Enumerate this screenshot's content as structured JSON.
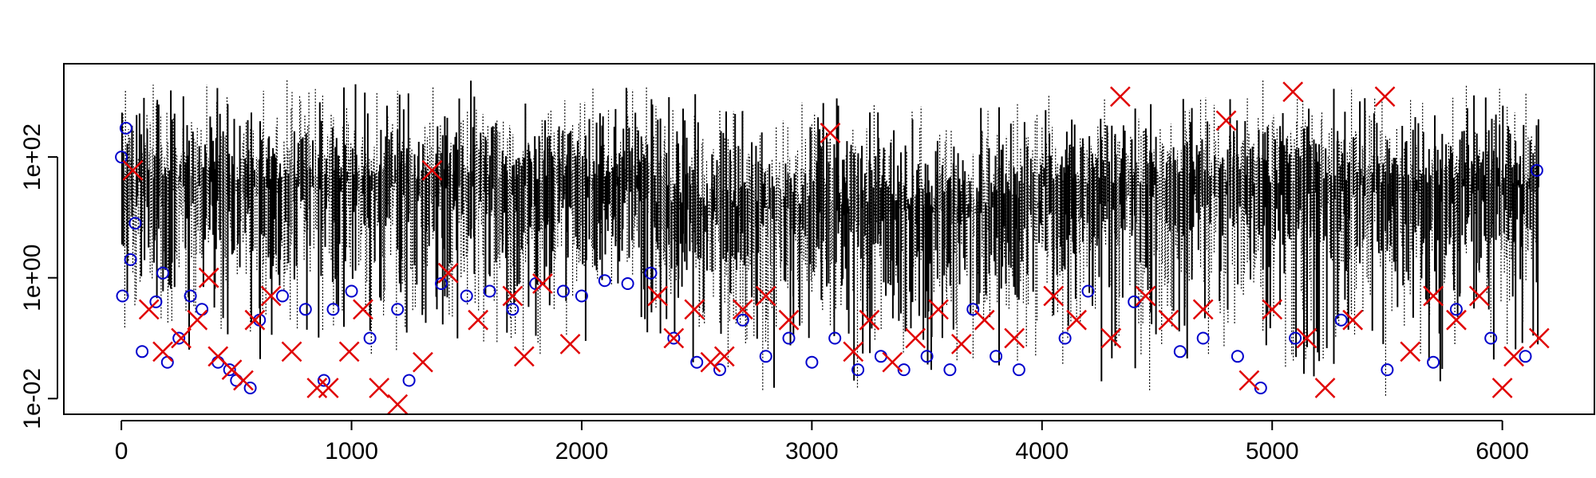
{
  "chart_data": {
    "type": "scatter",
    "title": "",
    "xlabel": "",
    "ylabel": "",
    "x_ticks": [
      "0",
      "1000",
      "2000",
      "3000",
      "4000",
      "5000",
      "6000"
    ],
    "x_tick_values": [
      0,
      1000,
      2000,
      3000,
      4000,
      5000,
      6000
    ],
    "y_ticks": [
      "1e-02",
      "1e+00",
      "1e+02"
    ],
    "y_tick_values": [
      0.01,
      1,
      100
    ],
    "xlim": [
      -250,
      6400
    ],
    "ylim": [
      0.0055,
      3500
    ],
    "y_scale": "log",
    "grid": false,
    "legend": "none",
    "colors": {
      "interval_lines": "#000000",
      "circles": "#0000cc",
      "crosses": "#e00000"
    },
    "series": [
      {
        "kind": "vertical segments",
        "color": "#000000",
        "x_range": [
          0,
          6160
        ],
        "segments": [
          {
            "x_range": [
              0,
              2320
            ],
            "center_y": 40,
            "low_y": 0.03,
            "high_y": 2500
          },
          {
            "x_range": [
              2320,
              4000
            ],
            "center_y": 15,
            "low_y": 0.01,
            "high_y": 1500
          },
          {
            "x_range": [
              4000,
              6160
            ],
            "center_y": 35,
            "low_y": 0.008,
            "high_y": 2000
          }
        ]
      },
      {
        "kind": "points",
        "marker": "circle",
        "color": "#0000cc",
        "points": [
          [
            0,
            100
          ],
          [
            5,
            0.5
          ],
          [
            20,
            300
          ],
          [
            40,
            2
          ],
          [
            60,
            8
          ],
          [
            90,
            0.06
          ],
          [
            150,
            0.4
          ],
          [
            180,
            1.2
          ],
          [
            200,
            0.04
          ],
          [
            250,
            0.1
          ],
          [
            300,
            0.5
          ],
          [
            350,
            0.3
          ],
          [
            420,
            0.04
          ],
          [
            470,
            0.03
          ],
          [
            500,
            0.02
          ],
          [
            560,
            0.015
          ],
          [
            600,
            0.2
          ],
          [
            700,
            0.5
          ],
          [
            800,
            0.3
          ],
          [
            880,
            0.02
          ],
          [
            920,
            0.3
          ],
          [
            1000,
            0.6
          ],
          [
            1080,
            0.1
          ],
          [
            1200,
            0.3
          ],
          [
            1250,
            0.02
          ],
          [
            1390,
            0.8
          ],
          [
            1500,
            0.5
          ],
          [
            1600,
            0.6
          ],
          [
            1700,
            0.3
          ],
          [
            1800,
            0.8
          ],
          [
            1920,
            0.6
          ],
          [
            2000,
            0.5
          ],
          [
            2100,
            0.9
          ],
          [
            2200,
            0.8
          ],
          [
            2300,
            1.2
          ],
          [
            2400,
            0.1
          ],
          [
            2500,
            0.04
          ],
          [
            2600,
            0.03
          ],
          [
            2700,
            0.2
          ],
          [
            2800,
            0.05
          ],
          [
            2900,
            0.1
          ],
          [
            3000,
            0.04
          ],
          [
            3100,
            0.1
          ],
          [
            3200,
            0.03
          ],
          [
            3300,
            0.05
          ],
          [
            3400,
            0.03
          ],
          [
            3500,
            0.05
          ],
          [
            3600,
            0.03
          ],
          [
            3700,
            0.3
          ],
          [
            3800,
            0.05
          ],
          [
            3900,
            0.03
          ],
          [
            4100,
            0.1
          ],
          [
            4200,
            0.6
          ],
          [
            4400,
            0.4
          ],
          [
            4600,
            0.06
          ],
          [
            4700,
            0.1
          ],
          [
            4850,
            0.05
          ],
          [
            4950,
            0.015
          ],
          [
            5100,
            0.1
          ],
          [
            5300,
            0.2
          ],
          [
            5500,
            0.03
          ],
          [
            5700,
            0.04
          ],
          [
            5800,
            0.3
          ],
          [
            5950,
            0.1
          ],
          [
            6100,
            0.05
          ],
          [
            6150,
            60
          ]
        ]
      },
      {
        "kind": "points",
        "marker": "cross",
        "color": "#e00000",
        "points": [
          [
            50,
            60
          ],
          [
            120,
            0.3
          ],
          [
            180,
            0.06
          ],
          [
            260,
            0.1
          ],
          [
            330,
            0.2
          ],
          [
            380,
            1.0
          ],
          [
            420,
            0.05
          ],
          [
            480,
            0.03
          ],
          [
            530,
            0.02
          ],
          [
            580,
            0.2
          ],
          [
            650,
            0.5
          ],
          [
            740,
            0.06
          ],
          [
            850,
            0.015
          ],
          [
            900,
            0.015
          ],
          [
            990,
            0.06
          ],
          [
            1050,
            0.3
          ],
          [
            1120,
            0.015
          ],
          [
            1200,
            0.008
          ],
          [
            1310,
            0.04
          ],
          [
            1350,
            60
          ],
          [
            1420,
            1.2
          ],
          [
            1550,
            0.2
          ],
          [
            1700,
            0.5
          ],
          [
            1750,
            0.05
          ],
          [
            1830,
            0.8
          ],
          [
            1950,
            0.08
          ],
          [
            2330,
            0.5
          ],
          [
            2400,
            0.1
          ],
          [
            2490,
            0.3
          ],
          [
            2560,
            0.04
          ],
          [
            2620,
            0.05
          ],
          [
            2700,
            0.3
          ],
          [
            2800,
            0.5
          ],
          [
            2900,
            0.2
          ],
          [
            3080,
            250
          ],
          [
            3180,
            0.06
          ],
          [
            3250,
            0.2
          ],
          [
            3350,
            0.04
          ],
          [
            3450,
            0.1
          ],
          [
            3550,
            0.3
          ],
          [
            3650,
            0.08
          ],
          [
            3750,
            0.2
          ],
          [
            3880,
            0.1
          ],
          [
            4050,
            0.5
          ],
          [
            4150,
            0.2
          ],
          [
            4300,
            0.1
          ],
          [
            4340,
            1000
          ],
          [
            4450,
            0.5
          ],
          [
            4550,
            0.2
          ],
          [
            4700,
            0.3
          ],
          [
            4800,
            400
          ],
          [
            4900,
            0.02
          ],
          [
            5000,
            0.3
          ],
          [
            5090,
            1200
          ],
          [
            5150,
            0.1
          ],
          [
            5230,
            0.015
          ],
          [
            5350,
            0.2
          ],
          [
            5490,
            1000
          ],
          [
            5600,
            0.06
          ],
          [
            5700,
            0.5
          ],
          [
            5800,
            0.2
          ],
          [
            5900,
            0.5
          ],
          [
            6000,
            0.015
          ],
          [
            6050,
            0.05
          ],
          [
            6160,
            0.1
          ]
        ]
      }
    ]
  }
}
